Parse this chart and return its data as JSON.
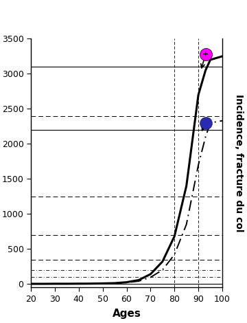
{
  "title": "Incidence, fracture du col",
  "xlabel": "Ages",
  "xlim": [
    20,
    100
  ],
  "ylim": [
    -50,
    3500
  ],
  "yticks": [
    0,
    500,
    1000,
    1500,
    2000,
    2500,
    3000,
    3500
  ],
  "xticks": [
    20,
    30,
    40,
    50,
    60,
    70,
    80,
    90,
    100
  ],
  "ages": [
    20,
    25,
    30,
    35,
    40,
    45,
    50,
    55,
    60,
    65,
    70,
    75,
    80,
    85,
    90,
    93,
    95,
    100
  ],
  "femme": [
    2,
    2,
    3,
    3,
    4,
    5,
    8,
    12,
    25,
    55,
    140,
    320,
    680,
    1400,
    2700,
    3050,
    3200,
    3250
  ],
  "homme": [
    2,
    2,
    3,
    3,
    4,
    5,
    7,
    10,
    20,
    40,
    95,
    200,
    420,
    850,
    1700,
    2100,
    2300,
    2330
  ],
  "femme_color": "#ff00ff",
  "homme_color": "#2a2ab0",
  "bg_color": "#ffffff",
  "solid_gridlines": [
    0,
    2200,
    3100
  ],
  "dash_gridlines": [
    350,
    700,
    1250,
    2400
  ],
  "dot_dash_gridlines": [
    100,
    200
  ],
  "femme_marker": [
    93,
    3280
  ],
  "homme_marker": [
    93,
    2300
  ],
  "vlines": [
    80,
    90
  ]
}
